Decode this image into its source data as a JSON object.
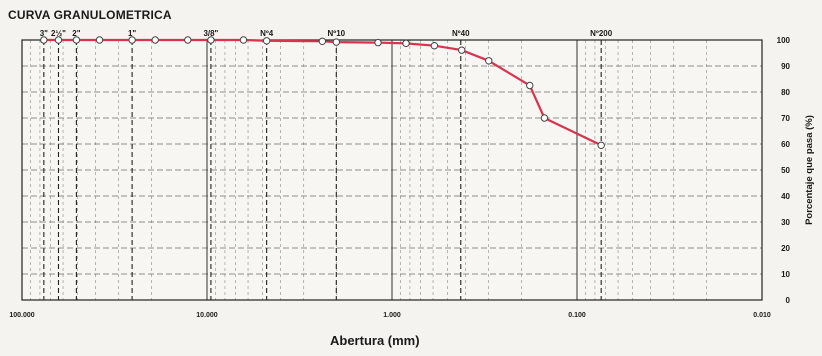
{
  "chart_data": {
    "type": "line",
    "title": "CURVA GRANULOMETRICA",
    "xlabel": "Abertura (mm)",
    "ylabel": "Porcentaje que pasa (%)",
    "x_scale": "log",
    "x_reversed": true,
    "xlim": [
      100,
      0.01
    ],
    "ylim": [
      0,
      100
    ],
    "x_tick_values": [
      100,
      10,
      1,
      0.1,
      0.01
    ],
    "x_tick_labels": [
      "100.000",
      "10.000",
      "1.000",
      "0.100",
      "0.010"
    ],
    "y_tick_labels": [
      "0",
      "10",
      "20",
      "30",
      "40",
      "50",
      "60",
      "70",
      "80",
      "90",
      "100"
    ],
    "sieves": [
      {
        "label": "3\"",
        "size": 76.2
      },
      {
        "label": "2½\"",
        "size": 63.5
      },
      {
        "label": "2\"",
        "size": 50.8
      },
      {
        "label": "1\"",
        "size": 25.4
      },
      {
        "label": "3/8\"",
        "size": 9.525
      },
      {
        "label": "Nº4",
        "size": 4.76
      },
      {
        "label": "Nº10",
        "size": 2.0
      },
      {
        "label": "Nº40",
        "size": 0.425
      },
      {
        "label": "Nº200",
        "size": 0.074
      }
    ],
    "series": [
      {
        "color": "#d9334f",
        "x": [
          76.2,
          63.5,
          50.8,
          38.1,
          25.4,
          19.05,
          12.7,
          9.525,
          6.35,
          4.76,
          2.38,
          2.0,
          1.19,
          0.84,
          0.59,
          0.42,
          0.3,
          0.18,
          0.15,
          0.074
        ],
        "y": [
          100,
          100,
          100,
          100,
          100,
          100,
          100,
          100,
          100,
          99.7,
          99.5,
          99.2,
          99.0,
          98.7,
          97.8,
          96.1,
          92.0,
          82.5,
          70.0,
          59.5
        ]
      }
    ],
    "grid": true
  }
}
